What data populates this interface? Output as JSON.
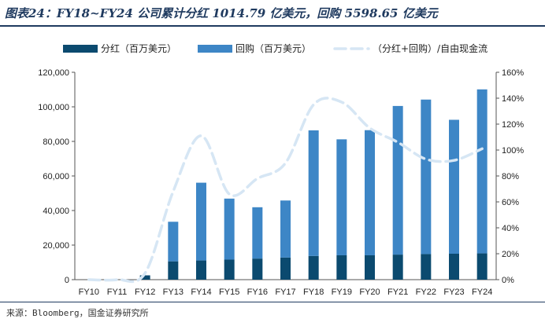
{
  "title": "图表24：FY18~FY24 公司累计分红 1014.79 亿美元，回购 5598.65 亿美元",
  "source": "来源：Bloomberg，国金证券研究所",
  "colors": {
    "dividend": "#0b4a6f",
    "buyback": "#3d86c6",
    "ratio": "#d6e6f4",
    "axis": "#555555"
  },
  "chart_data": {
    "type": "bar",
    "categories": [
      "FY10",
      "FY11",
      "FY12",
      "FY13",
      "FY14",
      "FY15",
      "FY16",
      "FY17",
      "FY18",
      "FY19",
      "FY20",
      "FY21",
      "FY22",
      "FY23",
      "FY24"
    ],
    "series": [
      {
        "name": "分红（百万美元）",
        "kind": "bar",
        "axis": "left",
        "values": [
          0,
          0,
          2500,
          10600,
          11100,
          11600,
          12200,
          12800,
          13700,
          14100,
          14100,
          14500,
          14800,
          15000,
          15200
        ]
      },
      {
        "name": "回购（百万美元）",
        "kind": "bar",
        "axis": "left",
        "values": [
          0,
          0,
          0,
          22900,
          45000,
          35300,
          29700,
          33000,
          72700,
          67100,
          72400,
          86000,
          89400,
          77500,
          94900
        ]
      },
      {
        "name": "（分红+回购）/自由现金流",
        "kind": "line",
        "axis": "right",
        "style": "dashed",
        "values": [
          0,
          0,
          5,
          68,
          111,
          66,
          78,
          90,
          135,
          137,
          117,
          106,
          93,
          92,
          101
        ]
      }
    ],
    "ylim": [
      0,
      120000
    ],
    "yticks": [
      "0",
      "20,000",
      "40,000",
      "60,000",
      "80,000",
      "100,000",
      "120,000"
    ],
    "y2lim": [
      0,
      160
    ],
    "y2ticks": [
      "0%",
      "20%",
      "40%",
      "60%",
      "80%",
      "100%",
      "120%",
      "140%",
      "160%"
    ],
    "stacked": true,
    "legend_position": "top",
    "grid": false
  }
}
